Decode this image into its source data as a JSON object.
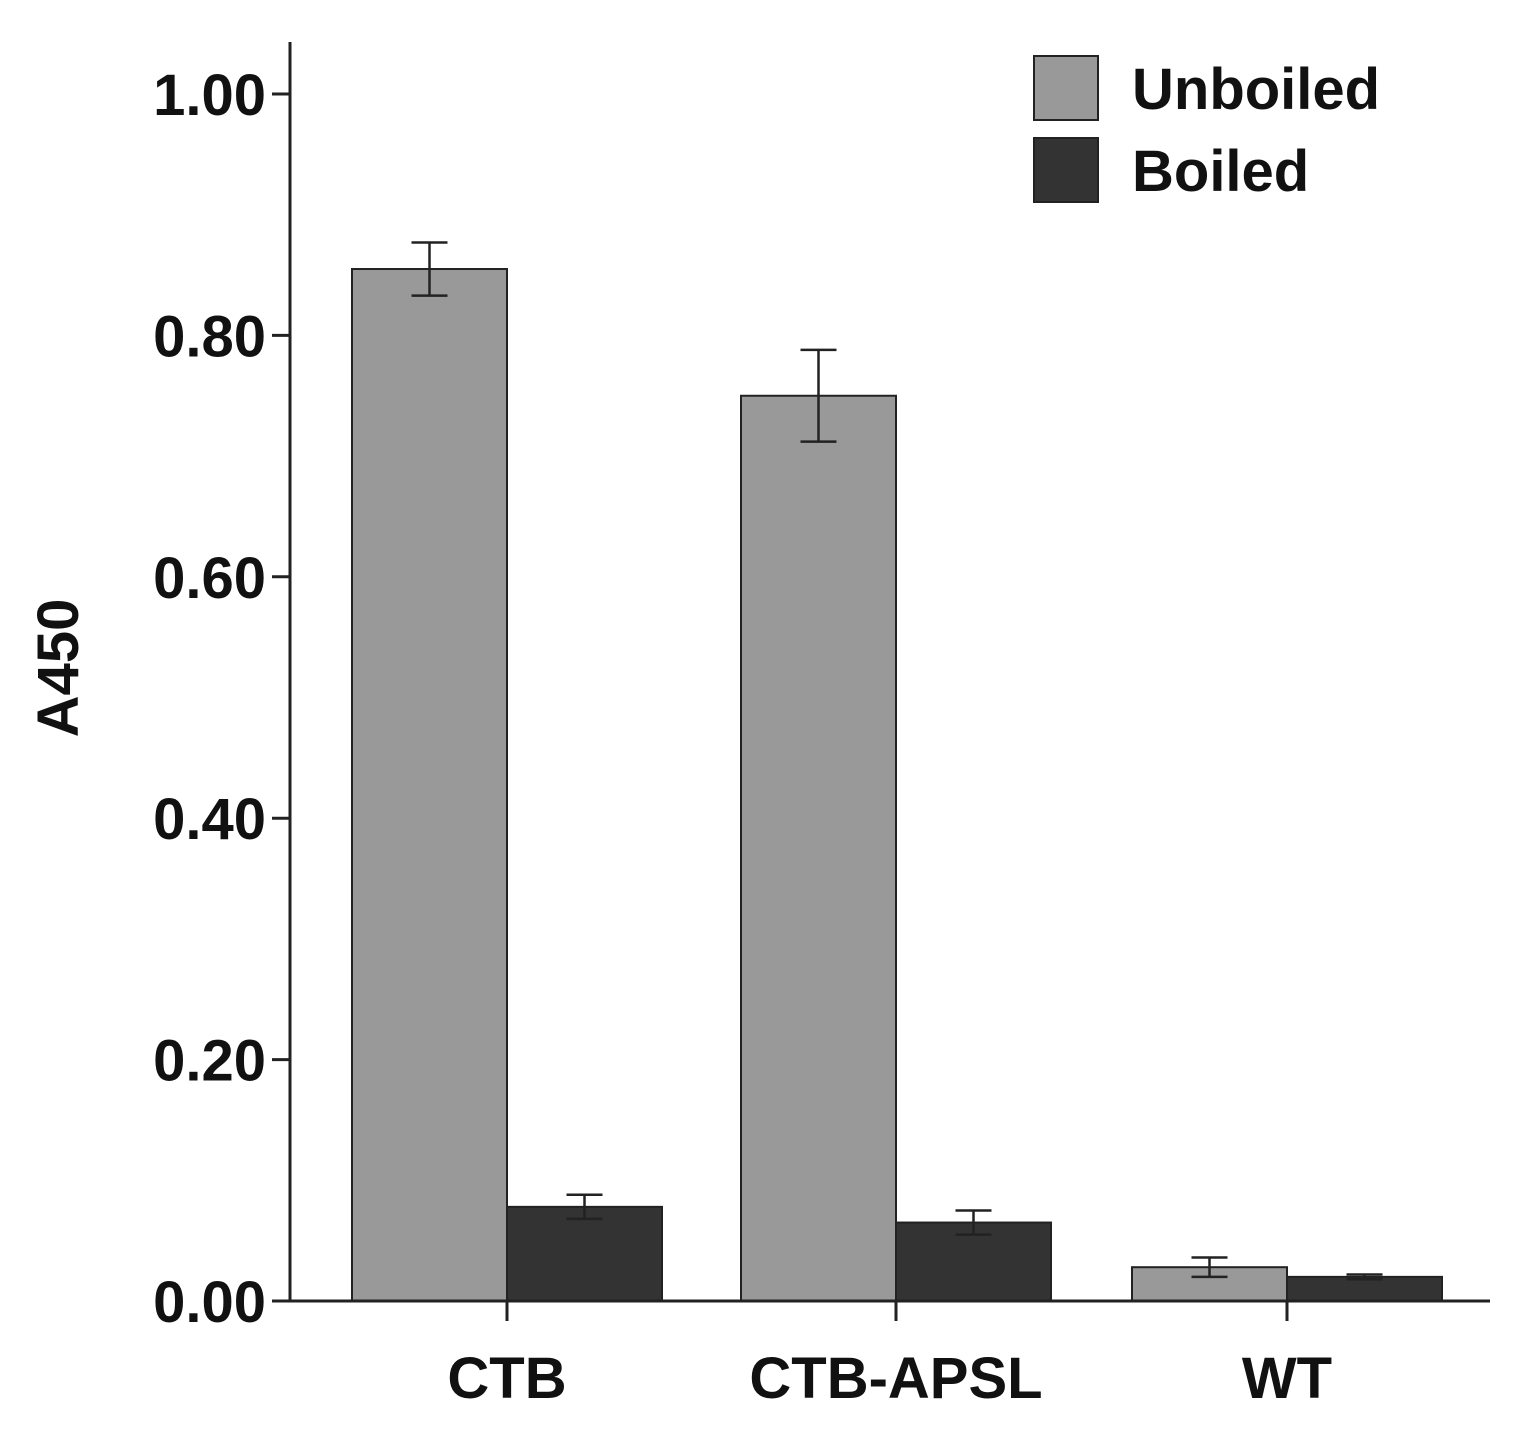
{
  "chart_data": {
    "type": "bar",
    "title": "",
    "xlabel": "",
    "ylabel": "A450",
    "ylim": [
      0,
      1.05
    ],
    "yticks": [
      0.0,
      0.2,
      0.4,
      0.6,
      0.8,
      1.0
    ],
    "ytick_labels": [
      "0.00",
      "0.20",
      "0.40",
      "0.60",
      "0.80",
      "1.00"
    ],
    "categories": [
      "CTB",
      "CTB-APSL",
      "WT"
    ],
    "series": [
      {
        "name": "Unboiled",
        "color": "#999999",
        "values": [
          0.855,
          0.75,
          0.028
        ],
        "errors": [
          0.022,
          0.038,
          0.008
        ]
      },
      {
        "name": "Boiled",
        "color": "#333333",
        "values": [
          0.078,
          0.065,
          0.02
        ],
        "errors": [
          0.01,
          0.01,
          0.002
        ]
      }
    ],
    "grid": false,
    "legend_position": "top-right",
    "error_bars": true
  }
}
